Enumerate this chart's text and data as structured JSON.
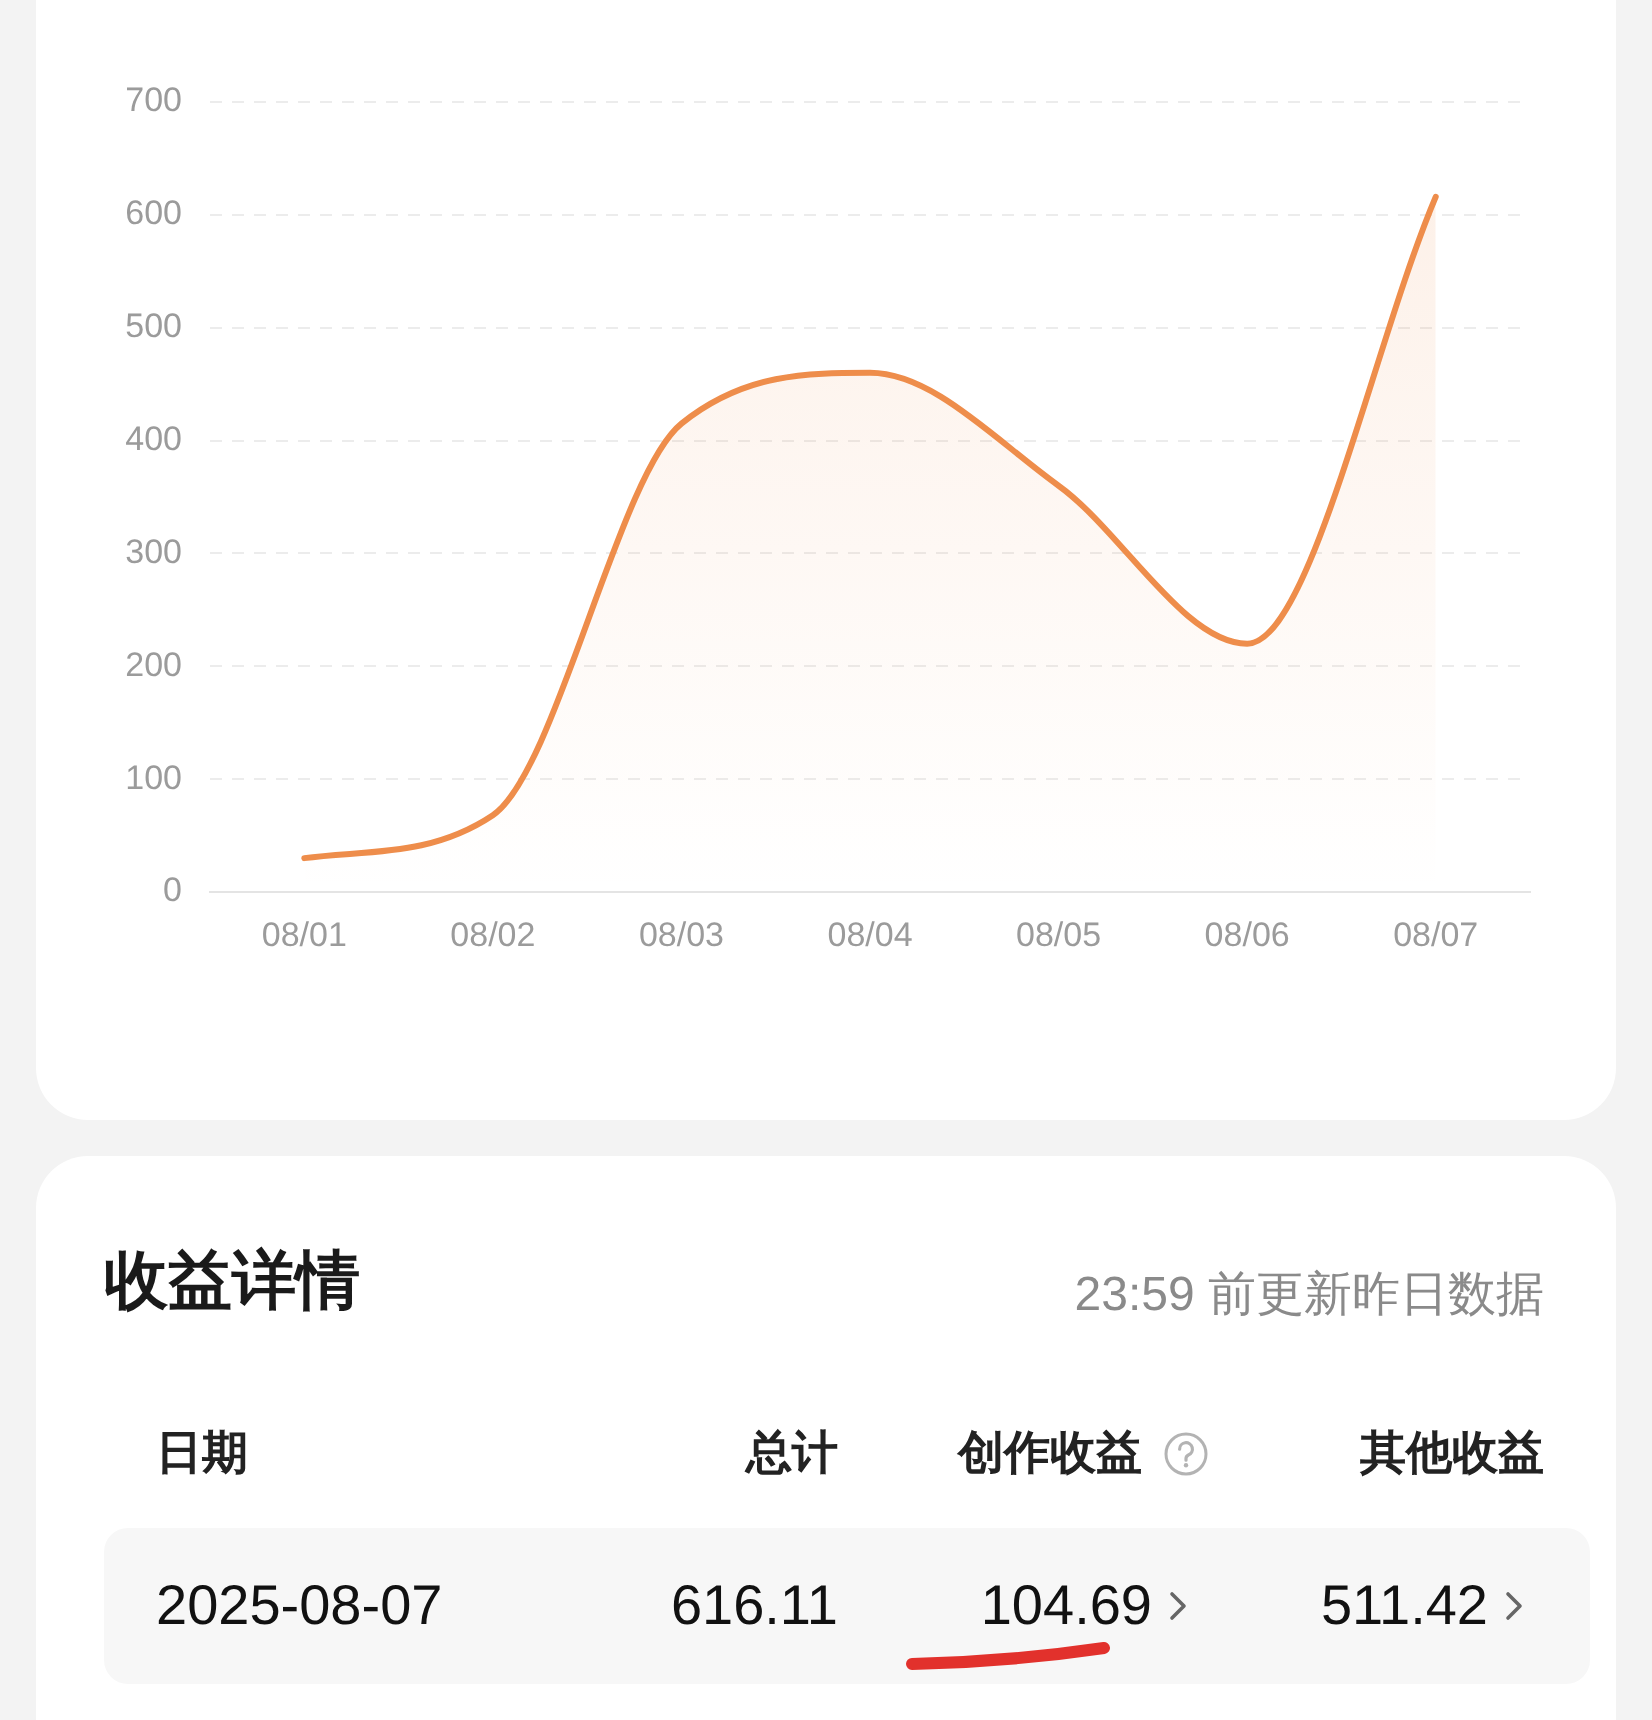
{
  "chart_data": [
    {
      "type": "area",
      "categories": [
        "08/01",
        "08/02",
        "08/03",
        "08/04",
        "08/05",
        "08/06",
        "08/07"
      ],
      "color": "#ee8d4b",
      "values": [
        30,
        68,
        415,
        460,
        360,
        220,
        616
      ],
      "ylim": [
        0,
        700
      ],
      "yticks": [
        0,
        100,
        200,
        300,
        400,
        500,
        600,
        700
      ],
      "grid": "y",
      "marker": "none"
    },
    {
      "type": "other",
      "title": "收益详情",
      "subtitle": "23:59 前更新昨日数据",
      "annotations": [
        "日期",
        "总计",
        "创作收益",
        "其他收益",
        "2025-08-07",
        "616.11",
        "104.69",
        "511.42"
      ]
    }
  ]
}
